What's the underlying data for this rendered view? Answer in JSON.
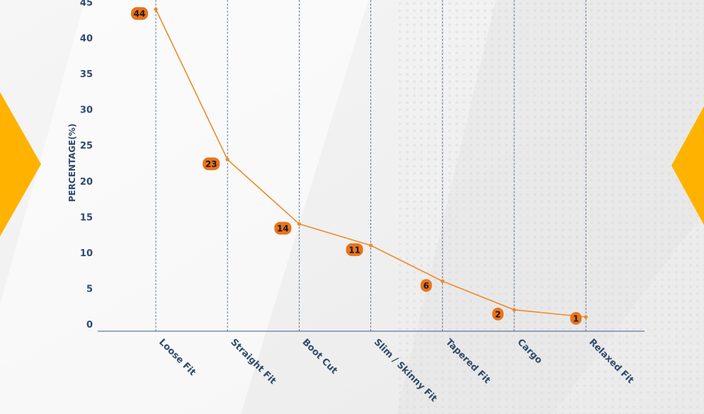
{
  "chart_data": {
    "type": "line",
    "categories": [
      "Loose Fit",
      "Straight Fit",
      "Boot Cut",
      "Slim / Skinny Fit",
      "Tapered Fit",
      "Cargo",
      "Relaxed Fit"
    ],
    "values": [
      44,
      23,
      14,
      11,
      6,
      2,
      1
    ],
    "ylabel": "PERCENTAGE(%)",
    "ylim": [
      0,
      45
    ],
    "yticks": [
      0,
      5,
      10,
      15,
      20,
      25,
      30,
      35,
      40,
      45
    ],
    "grid": "vertical-dashed",
    "data_labels": true,
    "colors": {
      "line": "#f08a24",
      "label_badge": "#e8731a",
      "axis_text": "#2f4a6e",
      "gridline": "#3d5a8a",
      "accent_shape": "#ffb300"
    }
  }
}
